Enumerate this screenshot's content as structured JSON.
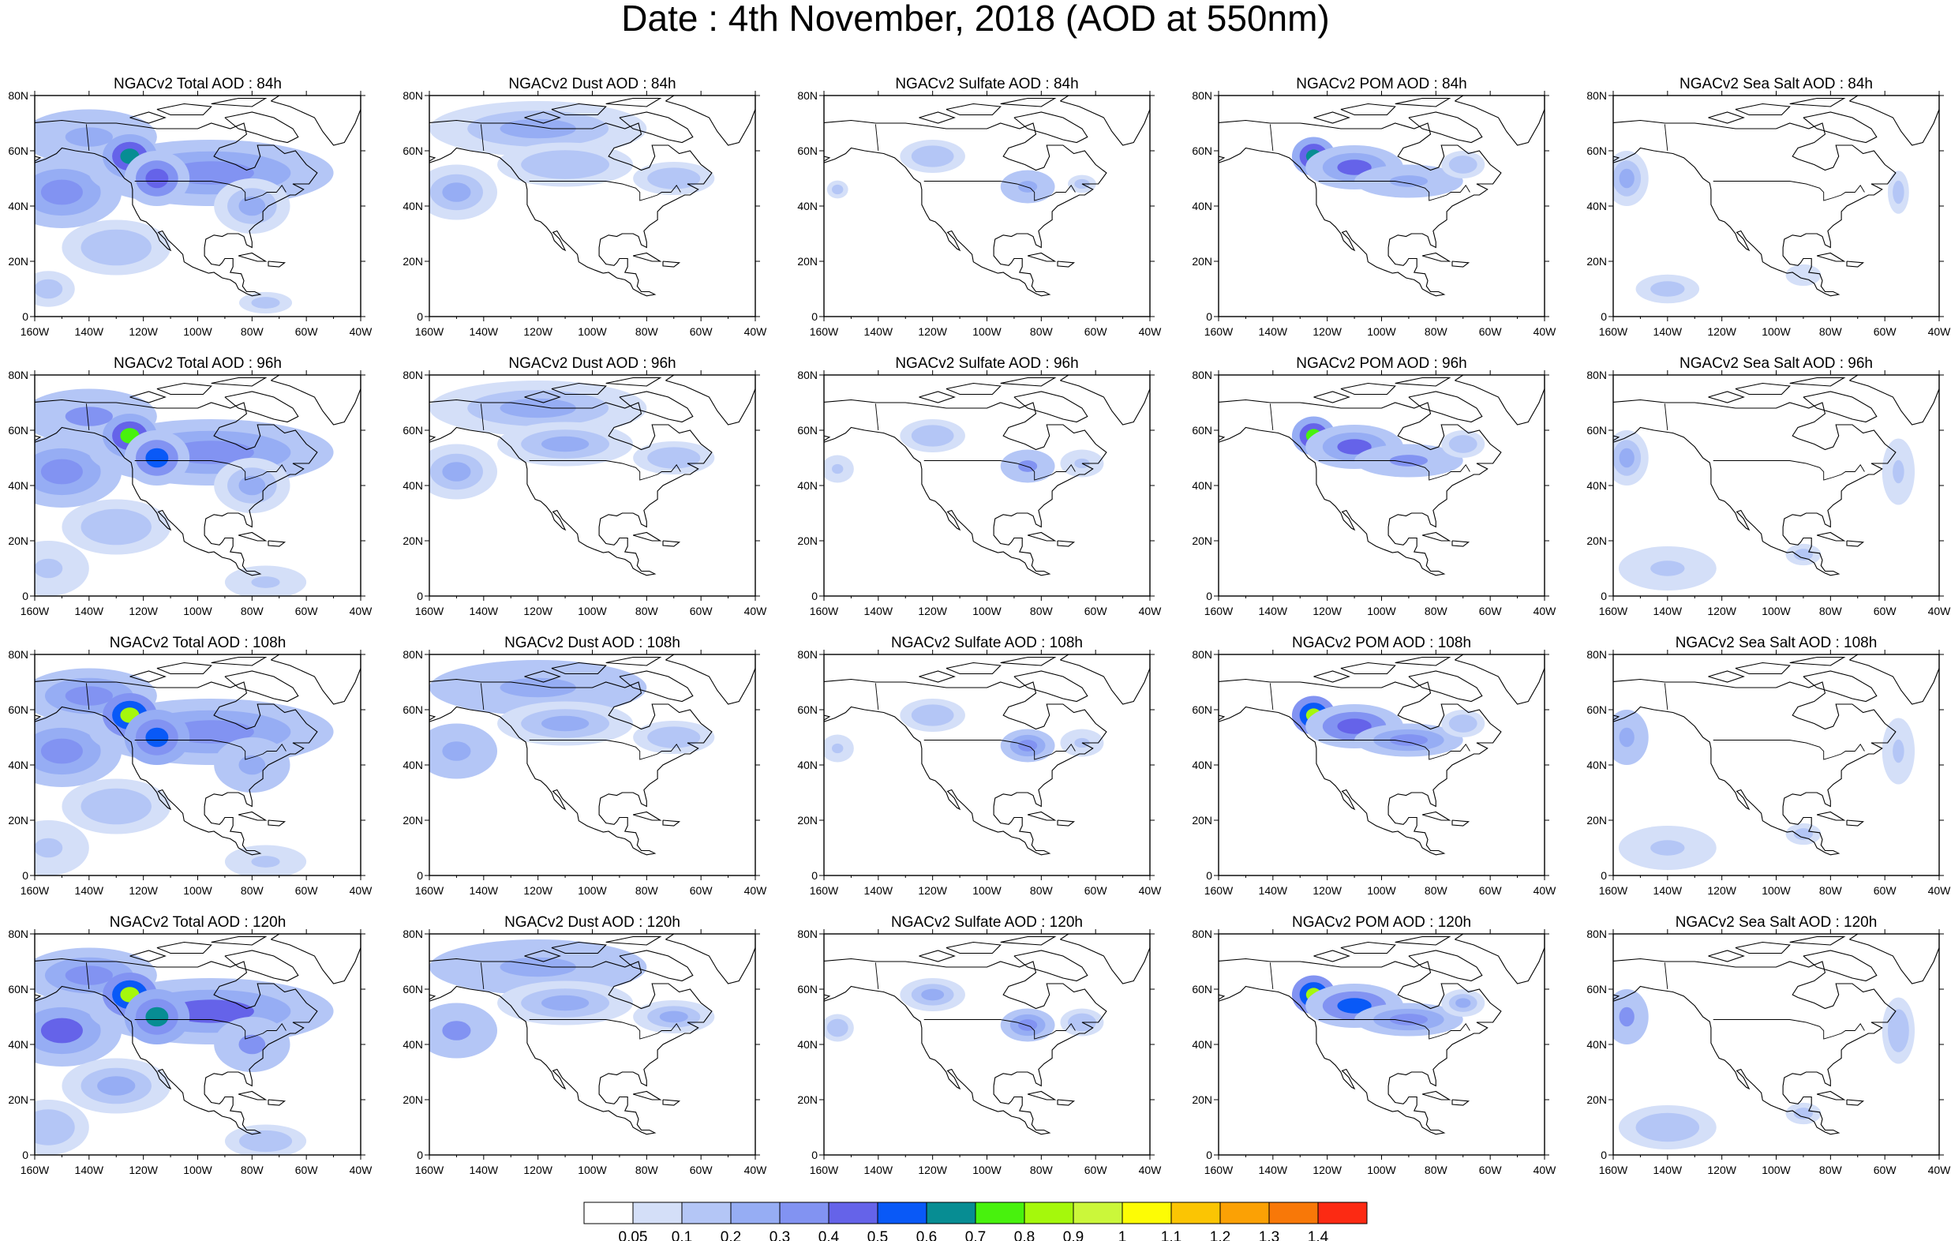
{
  "title": "Date : 4th November, 2018 (AOD at 550nm)",
  "map_extent": {
    "lon": [
      -160,
      -40
    ],
    "lat": [
      0,
      80
    ]
  },
  "lon_ticks": [
    "160W",
    "140W",
    "120W",
    "100W",
    "80W",
    "60W",
    "40W"
  ],
  "lat_ticks": [
    "0",
    "20N",
    "40N",
    "60N",
    "80N"
  ],
  "panels": [
    {
      "title": "NGACv2 Total AOD : 84h",
      "species": "total",
      "forecast_hour": 84
    },
    {
      "title": "NGACv2 Dust AOD : 84h",
      "species": "dust",
      "forecast_hour": 84
    },
    {
      "title": "NGACv2 Sulfate AOD : 84h",
      "species": "sulfate",
      "forecast_hour": 84
    },
    {
      "title": "NGACv2 POM AOD : 84h",
      "species": "pom",
      "forecast_hour": 84
    },
    {
      "title": "NGACv2 Sea Salt AOD : 84h",
      "species": "seasalt",
      "forecast_hour": 84
    },
    {
      "title": "NGACv2 Total AOD : 96h",
      "species": "total",
      "forecast_hour": 96
    },
    {
      "title": "NGACv2 Dust AOD : 96h",
      "species": "dust",
      "forecast_hour": 96
    },
    {
      "title": "NGACv2 Sulfate AOD : 96h",
      "species": "sulfate",
      "forecast_hour": 96
    },
    {
      "title": "NGACv2 POM AOD : 96h",
      "species": "pom",
      "forecast_hour": 96
    },
    {
      "title": "NGACv2 Sea Salt AOD : 96h",
      "species": "seasalt",
      "forecast_hour": 96
    },
    {
      "title": "NGACv2 Total AOD : 108h",
      "species": "total",
      "forecast_hour": 108
    },
    {
      "title": "NGACv2 Dust AOD : 108h",
      "species": "dust",
      "forecast_hour": 108
    },
    {
      "title": "NGACv2 Sulfate AOD : 108h",
      "species": "sulfate",
      "forecast_hour": 108
    },
    {
      "title": "NGACv2 POM AOD : 108h",
      "species": "pom",
      "forecast_hour": 108
    },
    {
      "title": "NGACv2 Sea Salt AOD : 108h",
      "species": "seasalt",
      "forecast_hour": 108
    },
    {
      "title": "NGACv2 Total AOD : 120h",
      "species": "total",
      "forecast_hour": 120
    },
    {
      "title": "NGACv2 Dust AOD : 120h",
      "species": "dust",
      "forecast_hour": 120
    },
    {
      "title": "NGACv2 Sulfate AOD : 120h",
      "species": "sulfate",
      "forecast_hour": 120
    },
    {
      "title": "NGACv2 POM AOD : 120h",
      "species": "pom",
      "forecast_hour": 120
    },
    {
      "title": "NGACv2 Sea Salt  AOD : 120h",
      "species": "seasalt",
      "forecast_hour": 120
    }
  ],
  "colorbar": {
    "colors": [
      "#ffffff",
      "#d4dff8",
      "#b4c6f6",
      "#96adf4",
      "#8293f2",
      "#6563e9",
      "#0959f7",
      "#078d93",
      "#48f20d",
      "#a5f80c",
      "#cbf73a",
      "#fdfc05",
      "#fbc503",
      "#fba105",
      "#f87808",
      "#fc2a13"
    ],
    "labels": [
      "0.05",
      "0.1",
      "0.2",
      "0.3",
      "0.4",
      "0.5",
      "0.6",
      "0.7",
      "0.8",
      "0.9",
      "1",
      "1.1",
      "1.2",
      "1.3",
      "1.4"
    ]
  }
}
